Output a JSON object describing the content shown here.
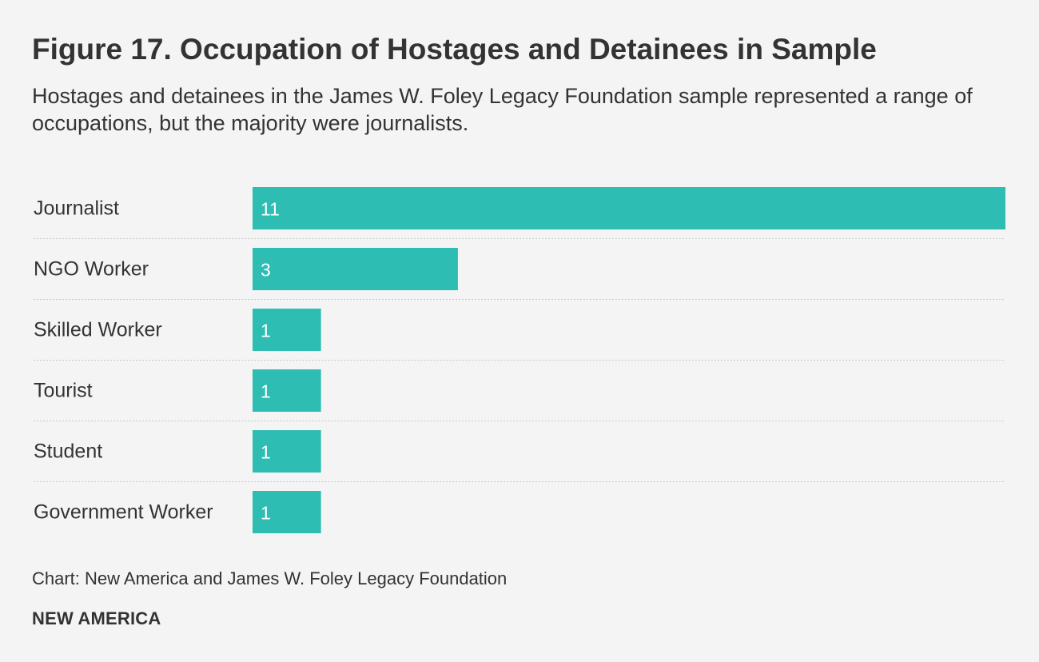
{
  "chart_data": {
    "type": "bar",
    "orientation": "horizontal",
    "title": "Figure 17. Occupation of Hostages and Detainees in Sample",
    "subtitle": "Hostages and detainees in the James W. Foley Legacy Foundation sample represented a range of occupations, but the majority were journalists.",
    "categories": [
      "Journalist",
      "NGO Worker",
      "Skilled Worker",
      "Tourist",
      "Student",
      "Government Worker"
    ],
    "values": [
      11,
      3,
      1,
      1,
      1,
      1
    ],
    "xlim": [
      0,
      11
    ],
    "bar_color": "#2ebdb3",
    "label_color": "#ffffff",
    "source": "Chart: New America and James W. Foley Legacy Foundation",
    "brand": "NEW AMERICA"
  }
}
